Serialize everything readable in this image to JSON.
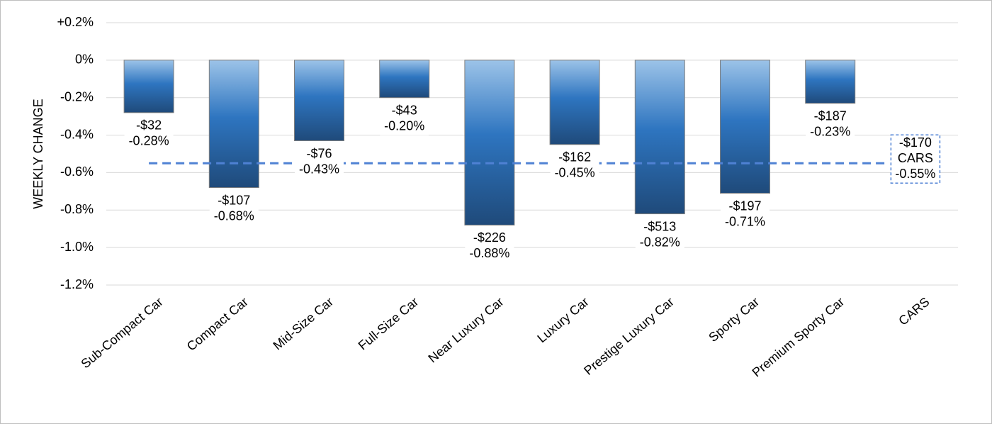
{
  "chart_data": {
    "type": "bar",
    "y_label": "WEEKLY CHANGE",
    "categories": [
      "Sub-Compact Car",
      "Compact Car",
      "Mid-Size Car",
      "Full-Size Car",
      "Near Luxury Car",
      "Luxury Car",
      "Prestige Luxury Car",
      "Sporty Car",
      "Premium Sporty Car",
      "CARS"
    ],
    "values": [
      -0.28,
      -0.68,
      -0.43,
      -0.2,
      -0.88,
      -0.45,
      -0.82,
      -0.71,
      -0.23,
      null
    ],
    "value_labels": [
      "-0.28%",
      "-0.68%",
      "-0.43%",
      "-0.20%",
      "-0.88%",
      "-0.45%",
      "-0.82%",
      "-0.71%",
      "-0.23%",
      null
    ],
    "dollar_labels": [
      "-$32",
      "-$107",
      "-$76",
      "-$43",
      "-$226",
      "-$162",
      "-$513",
      "-$197",
      "-$187",
      null
    ],
    "reference": {
      "value": -0.55,
      "label": "-0.55%",
      "dollar_label": "-$170",
      "color": "#4f81d4"
    },
    "color": "#2e75c0",
    "ylim": [
      -1.2,
      0.2
    ],
    "yticks": [
      {
        "value": 0.2,
        "label": "+0.2%"
      },
      {
        "value": 0,
        "label": "0%"
      },
      {
        "value": -0.2,
        "label": "-0.2%"
      },
      {
        "value": -0.4,
        "label": "-0.4%"
      },
      {
        "value": -0.6,
        "label": "-0.6%"
      },
      {
        "value": -0.8,
        "label": "-0.8%"
      },
      {
        "value": -1.0,
        "label": "-1.0%"
      },
      {
        "value": -1.2,
        "label": "-1.2%"
      }
    ],
    "grid": true
  }
}
